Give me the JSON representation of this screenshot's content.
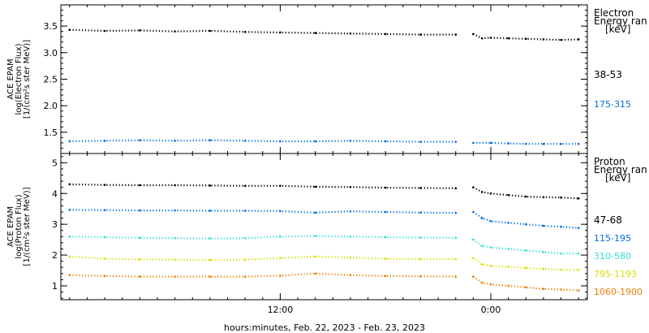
{
  "x_axis": {
    "label": "hours:minutes, Feb. 22, 2023 - Feb. 23, 2023",
    "range_hours": [
      -0.5,
      29.5
    ],
    "ticks": [
      {
        "hour": 12,
        "label": "12:00"
      },
      {
        "hour": 24,
        "label": "0:00"
      }
    ],
    "minor_tick_every_hours": 1
  },
  "chart_data": [
    {
      "type": "scatter",
      "ylabel": [
        "ACE EPAM",
        "log(Electron Flux)",
        "[1/(cm²s ster MeV)]"
      ],
      "ylim": [
        1.1,
        3.9
      ],
      "yticks": [
        1.5,
        2.0,
        2.5,
        3.0,
        3.5
      ],
      "ytick_labels": [
        "1.5",
        "2.0",
        "2.5",
        "3.0",
        "3.5"
      ],
      "legend": {
        "title": [
          "Electron",
          "Energy ran",
          "[keV]"
        ],
        "placement": "right"
      },
      "series": [
        {
          "name": "38-53",
          "color": "#000000",
          "segments": [
            {
              "x": [
                0.0,
                2.0,
                4.0,
                6.0,
                8.0,
                10.0,
                12.0,
                14.0,
                16.0,
                18.0,
                20.0,
                22.0
              ],
              "y": [
                3.43,
                3.41,
                3.42,
                3.4,
                3.41,
                3.39,
                3.38,
                3.37,
                3.36,
                3.35,
                3.34,
                3.34
              ]
            },
            {
              "x": [
                23.0,
                23.5,
                24.0,
                25.0,
                26.0,
                27.0,
                28.0,
                29.0
              ],
              "y": [
                3.35,
                3.27,
                3.28,
                3.27,
                3.26,
                3.25,
                3.24,
                3.25
              ]
            }
          ]
        },
        {
          "name": "175-315",
          "color": "#0070e0",
          "segments": [
            {
              "x": [
                0.0,
                2.0,
                4.0,
                6.0,
                8.0,
                10.0,
                12.0,
                14.0,
                16.0,
                18.0,
                20.0,
                22.0
              ],
              "y": [
                1.33,
                1.34,
                1.35,
                1.34,
                1.35,
                1.34,
                1.33,
                1.33,
                1.34,
                1.33,
                1.32,
                1.32
              ]
            },
            {
              "x": [
                23.0,
                24.0,
                25.0,
                26.0,
                27.0,
                28.0,
                29.0
              ],
              "y": [
                1.3,
                1.3,
                1.29,
                1.28,
                1.28,
                1.28,
                1.28
              ]
            }
          ]
        }
      ]
    },
    {
      "type": "scatter",
      "ylabel": [
        "ACE EPAM",
        "log(Proton Flux)",
        "[1/(cm²s ster MeV)]"
      ],
      "ylim": [
        0.55,
        5.3
      ],
      "yticks": [
        1,
        2,
        3,
        4,
        5
      ],
      "ytick_labels": [
        "1",
        "2",
        "3",
        "4",
        "5"
      ],
      "legend": {
        "title": [
          "Proton",
          "Energy ran",
          "[keV]"
        ],
        "placement": "right"
      },
      "series": [
        {
          "name": "47-68",
          "color": "#000000",
          "segments": [
            {
              "x": [
                0.0,
                2.0,
                4.0,
                6.0,
                8.0,
                10.0,
                12.0,
                14.0,
                16.0,
                18.0,
                20.0,
                22.0
              ],
              "y": [
                4.3,
                4.28,
                4.27,
                4.27,
                4.26,
                4.25,
                4.25,
                4.22,
                4.21,
                4.19,
                4.18,
                4.17
              ]
            },
            {
              "x": [
                23.0,
                23.5,
                24.0,
                25.0,
                26.0,
                27.0,
                28.0,
                29.0
              ],
              "y": [
                4.2,
                4.05,
                4.0,
                3.95,
                3.9,
                3.88,
                3.87,
                3.84
              ]
            }
          ]
        },
        {
          "name": "115-195",
          "color": "#0070e0",
          "segments": [
            {
              "x": [
                0.0,
                2.0,
                4.0,
                6.0,
                8.0,
                10.0,
                12.0,
                14.0,
                16.0,
                18.0,
                20.0,
                22.0
              ],
              "y": [
                3.47,
                3.46,
                3.45,
                3.45,
                3.44,
                3.44,
                3.43,
                3.38,
                3.42,
                3.4,
                3.38,
                3.37
              ]
            },
            {
              "x": [
                23.0,
                23.5,
                24.0,
                25.0,
                26.0,
                27.0,
                28.0,
                29.0
              ],
              "y": [
                3.4,
                3.2,
                3.1,
                3.05,
                3.0,
                2.95,
                2.92,
                2.88
              ]
            }
          ]
        },
        {
          "name": "310-580",
          "color": "#30e0d0",
          "segments": [
            {
              "x": [
                0.0,
                2.0,
                4.0,
                6.0,
                8.0,
                10.0,
                12.0,
                14.0,
                16.0,
                18.0,
                20.0,
                22.0
              ],
              "y": [
                2.6,
                2.58,
                2.56,
                2.55,
                2.54,
                2.55,
                2.6,
                2.62,
                2.6,
                2.58,
                2.57,
                2.56
              ]
            },
            {
              "x": [
                23.0,
                23.5,
                24.0,
                25.0,
                26.0,
                27.0,
                28.0,
                29.0
              ],
              "y": [
                2.5,
                2.3,
                2.25,
                2.2,
                2.15,
                2.1,
                2.05,
                2.05
              ]
            }
          ]
        },
        {
          "name": "795-1193",
          "color": "#d8e000",
          "segments": [
            {
              "x": [
                0.0,
                2.0,
                4.0,
                6.0,
                8.0,
                10.0,
                12.0,
                14.0,
                16.0,
                18.0,
                20.0,
                22.0
              ],
              "y": [
                1.95,
                1.88,
                1.86,
                1.85,
                1.84,
                1.85,
                1.9,
                1.95,
                1.92,
                1.88,
                1.87,
                1.87
              ]
            },
            {
              "x": [
                23.0,
                23.5,
                24.0,
                25.0,
                26.0,
                27.0,
                28.0,
                29.0
              ],
              "y": [
                1.9,
                1.7,
                1.65,
                1.62,
                1.58,
                1.55,
                1.52,
                1.52
              ]
            }
          ]
        },
        {
          "name": "1060-1900",
          "color": "#e88000",
          "segments": [
            {
              "x": [
                0.0,
                2.0,
                4.0,
                6.0,
                8.0,
                10.0,
                12.0,
                14.0,
                16.0,
                18.0,
                20.0,
                22.0
              ],
              "y": [
                1.35,
                1.32,
                1.3,
                1.3,
                1.3,
                1.3,
                1.33,
                1.4,
                1.35,
                1.32,
                1.31,
                1.3
              ]
            },
            {
              "x": [
                23.0,
                23.5,
                24.0,
                25.0,
                26.0,
                27.0,
                28.0,
                29.0
              ],
              "y": [
                1.3,
                1.1,
                1.05,
                1.0,
                0.95,
                0.9,
                0.88,
                0.85
              ]
            }
          ]
        }
      ]
    }
  ]
}
